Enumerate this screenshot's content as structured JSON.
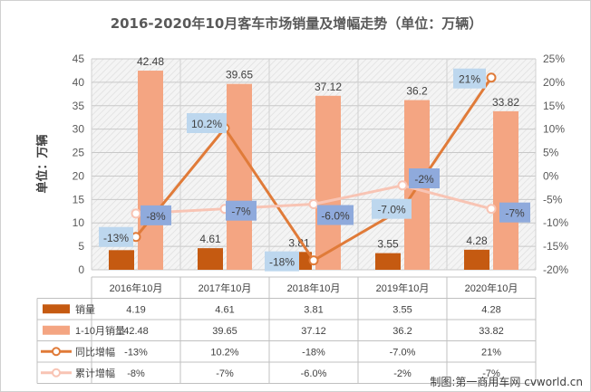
{
  "chart_data": {
    "type": "bar",
    "title": "2016-2020年10月客车市场销量及增幅走势（单位：万辆）",
    "ylabel": "单位：万辆",
    "categories": [
      "2016年10月",
      "2017年10月",
      "2018年10月",
      "2019年10月",
      "2020年10月"
    ],
    "y_left": {
      "min": 0,
      "max": 45,
      "ticks": [
        "0",
        "5",
        "10",
        "15",
        "20",
        "25",
        "30",
        "35",
        "40",
        "45"
      ]
    },
    "y_right": {
      "min": -20,
      "max": 25,
      "ticks": [
        "-20%",
        "-15%",
        "-10%",
        "-5%",
        "0%",
        "5%",
        "10%",
        "15%",
        "20%",
        "25%"
      ]
    },
    "grid": true,
    "legend": "table",
    "series": [
      {
        "name": "销量",
        "kind": "bar",
        "axis": "left",
        "color": "#c55a11",
        "values": [
          4.19,
          4.61,
          3.81,
          3.55,
          4.28
        ],
        "labels": [
          "4.19",
          "4.61",
          "3.81",
          "3.55",
          "4.28"
        ]
      },
      {
        "name": "1-10月销量",
        "kind": "bar",
        "axis": "left",
        "color": "#f4a582",
        "values": [
          42.48,
          39.65,
          37.12,
          36.2,
          33.82
        ],
        "labels": [
          "42.48",
          "39.65",
          "37.12",
          "36.2",
          "33.82"
        ]
      },
      {
        "name": "同比增幅",
        "kind": "line",
        "axis": "right",
        "color": "#e07b39",
        "values": [
          -13,
          10.2,
          -18,
          -7,
          21
        ],
        "labels": [
          "-13%",
          "10.2%",
          "-18%",
          "-7.0%",
          "21%"
        ]
      },
      {
        "name": "累计增幅",
        "kind": "line",
        "axis": "right",
        "color": "#f8c4b4",
        "values": [
          -8,
          -7,
          -6,
          -2,
          -7
        ],
        "labels": [
          "-8%",
          "-7%",
          "-6.0%",
          "-2%",
          "-7%"
        ]
      }
    ],
    "label_colors": {
      "yoy": "#bdd7ee",
      "cum": "#8faadc"
    }
  },
  "source": "制图:第一商用车网 cvworld.cn"
}
